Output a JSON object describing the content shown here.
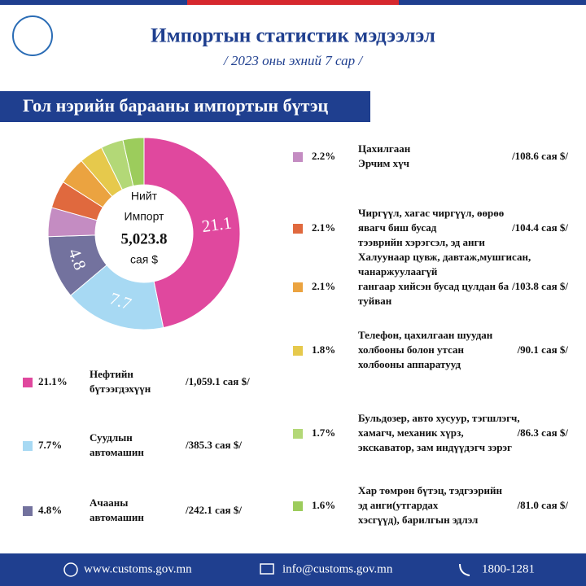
{
  "header": {
    "title": "Импортын статистик мэдээлэл",
    "subtitle": "/ 2023 оны эхний  7 сар /"
  },
  "section_title": "Гол нэрийн барааны импортын бүтэц",
  "chart_data": {
    "type": "pie",
    "donut": true,
    "center_label": [
      "Нийт",
      "Импорт",
      "5,023.8",
      "сая $"
    ],
    "categories": [
      [
        "Нефтийн",
        "бүтээгдэхүүн"
      ],
      [
        "Суудлын",
        "автомашин"
      ],
      [
        "Ачааны",
        "автомашин"
      ],
      [
        "Цахилгаан",
        "Эрчим хүч"
      ],
      [
        "Чиргүүл, хагас чиргүүл,  өөрөө",
        "явагч биш бусад",
        "тээврийн хэрэгсэл, эд анги"
      ],
      [
        "Халуунаар цувж, давтаж,мушгисан,",
        "чанаржуулаагүй",
        "гангаар хийсэн бусад цулдан ба",
        "туйван"
      ],
      [
        "Телефон, цахилгаан шуудан",
        "холбооны болон утсан",
        "холбооны аппаратууд"
      ],
      [
        "Бульдозер, авто хусуур, тэгшлэгч,",
        "хамагч, механик хүрз,",
        "экскаватор, зам индүүдэгч зэрэг"
      ],
      [
        "Хар төмрөн бүтэц, тэдгээрийн",
        "эд анги(утгардах",
        "хэсгүүд), барилгын эдлэл"
      ]
    ],
    "values": [
      21.1,
      7.7,
      4.8,
      2.2,
      2.1,
      2.1,
      1.8,
      1.7,
      1.6
    ],
    "value_labels": [
      "21.1%",
      "7.7%",
      "4.8%",
      "2.2%",
      "2.1%",
      "2.1%",
      "1.8%",
      "1.7%",
      "1.6%"
    ],
    "amounts": [
      "/1,059.1 сая $/",
      "/385.3 сая $/",
      "/242.1 сая $/",
      "/108.6  сая $/",
      "/104.4 сая $/",
      "/103.8 сая $/",
      "/90.1 сая $/",
      "/86.3 сая $/",
      "/81.0 сая $/"
    ],
    "colors": [
      "#e0489e",
      "#a7d9f3",
      "#73729e",
      "#c48cc2",
      "#e0693e",
      "#eba340",
      "#e6c94c",
      "#b3d877",
      "#9ccc5c"
    ]
  },
  "footer": {
    "website": "www.customs.gov.mn",
    "email": "info@customs.gov.mn",
    "phone": "1800-1281"
  }
}
